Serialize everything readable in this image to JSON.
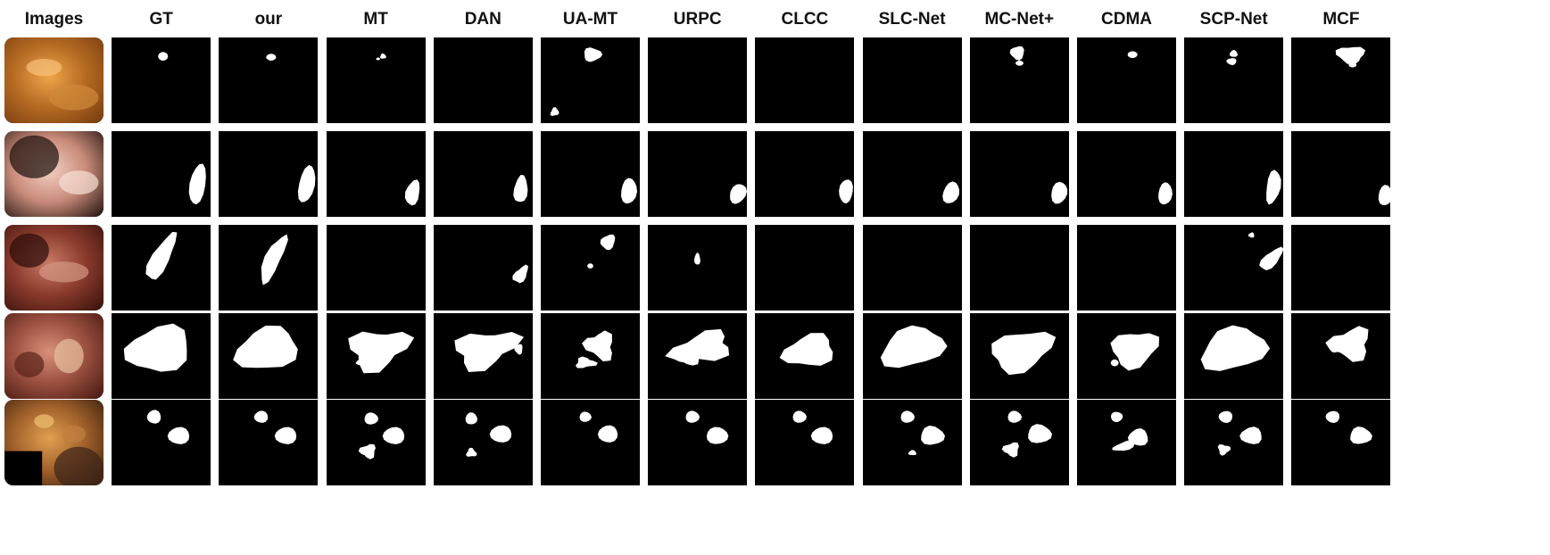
{
  "figure": {
    "columns": [
      "Images",
      "GT",
      "our",
      "MT",
      "DAN",
      "UA-MT",
      "URPC",
      "CLCC",
      "SLC-Net",
      "MC-Net+",
      "CDMA",
      "SCP-Net",
      "MCF"
    ],
    "rows": 5
  },
  "colors": {
    "background": "#ffffff",
    "mask_bg": "#000000",
    "mask_fg": "#ffffff"
  }
}
